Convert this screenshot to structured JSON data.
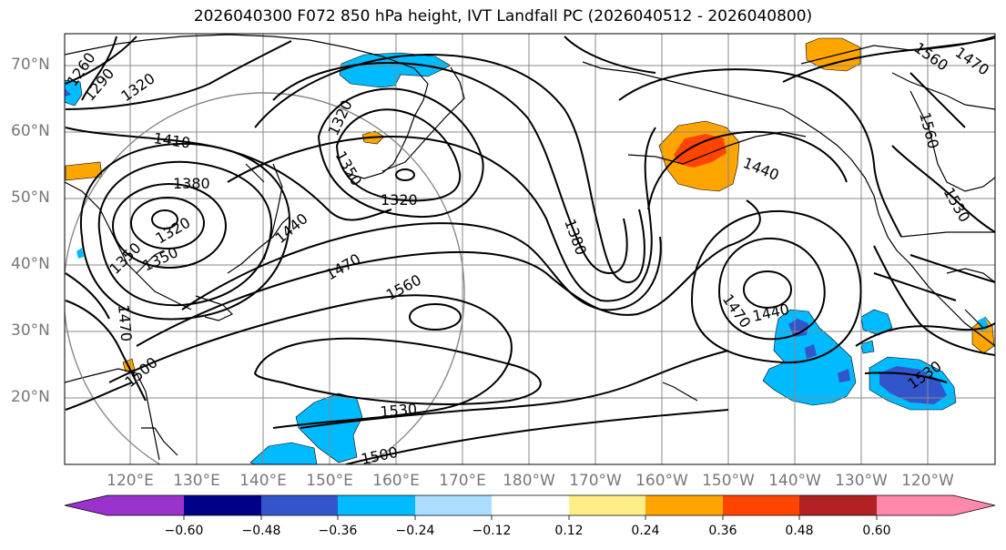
{
  "title": "2026040300 F072 850 hPa height, IVT Landfall PC (2026040512 - 2026040800)",
  "lat_labels": [
    "70°N",
    "60°N",
    "50°N",
    "40°N",
    "30°N",
    "20°N"
  ],
  "lon_labels": [
    "120°E",
    "130°E",
    "140°E",
    "150°E",
    "160°E",
    "170°E",
    "180°W",
    "170°W",
    "160°W",
    "150°W",
    "140°W",
    "130°W",
    "120°W"
  ],
  "contour_labels": [
    "1260",
    "1290",
    "1320",
    "1410",
    "1380",
    "1320",
    "1350",
    "1320",
    "1350",
    "1380",
    "1440",
    "1470",
    "1560",
    "1320",
    "1350",
    "1470",
    "1380",
    "1440",
    "1470",
    "1440",
    "1560",
    "1530",
    "1560",
    "1530",
    "1500",
    "1530",
    "1500",
    "1470"
  ],
  "colorbar": {
    "ticks": [
      "−0.60",
      "−0.48",
      "−0.36",
      "−0.24",
      "−0.12",
      "0.12",
      "0.24",
      "0.36",
      "0.48",
      "0.60"
    ],
    "colors": [
      "#9933cc",
      "#000088",
      "#3355cc",
      "#00bbff",
      "#aaddff",
      "#ffffff",
      "#ffee88",
      "#ffa500",
      "#ff4400",
      "#b22222",
      "#ff88aa"
    ]
  }
}
